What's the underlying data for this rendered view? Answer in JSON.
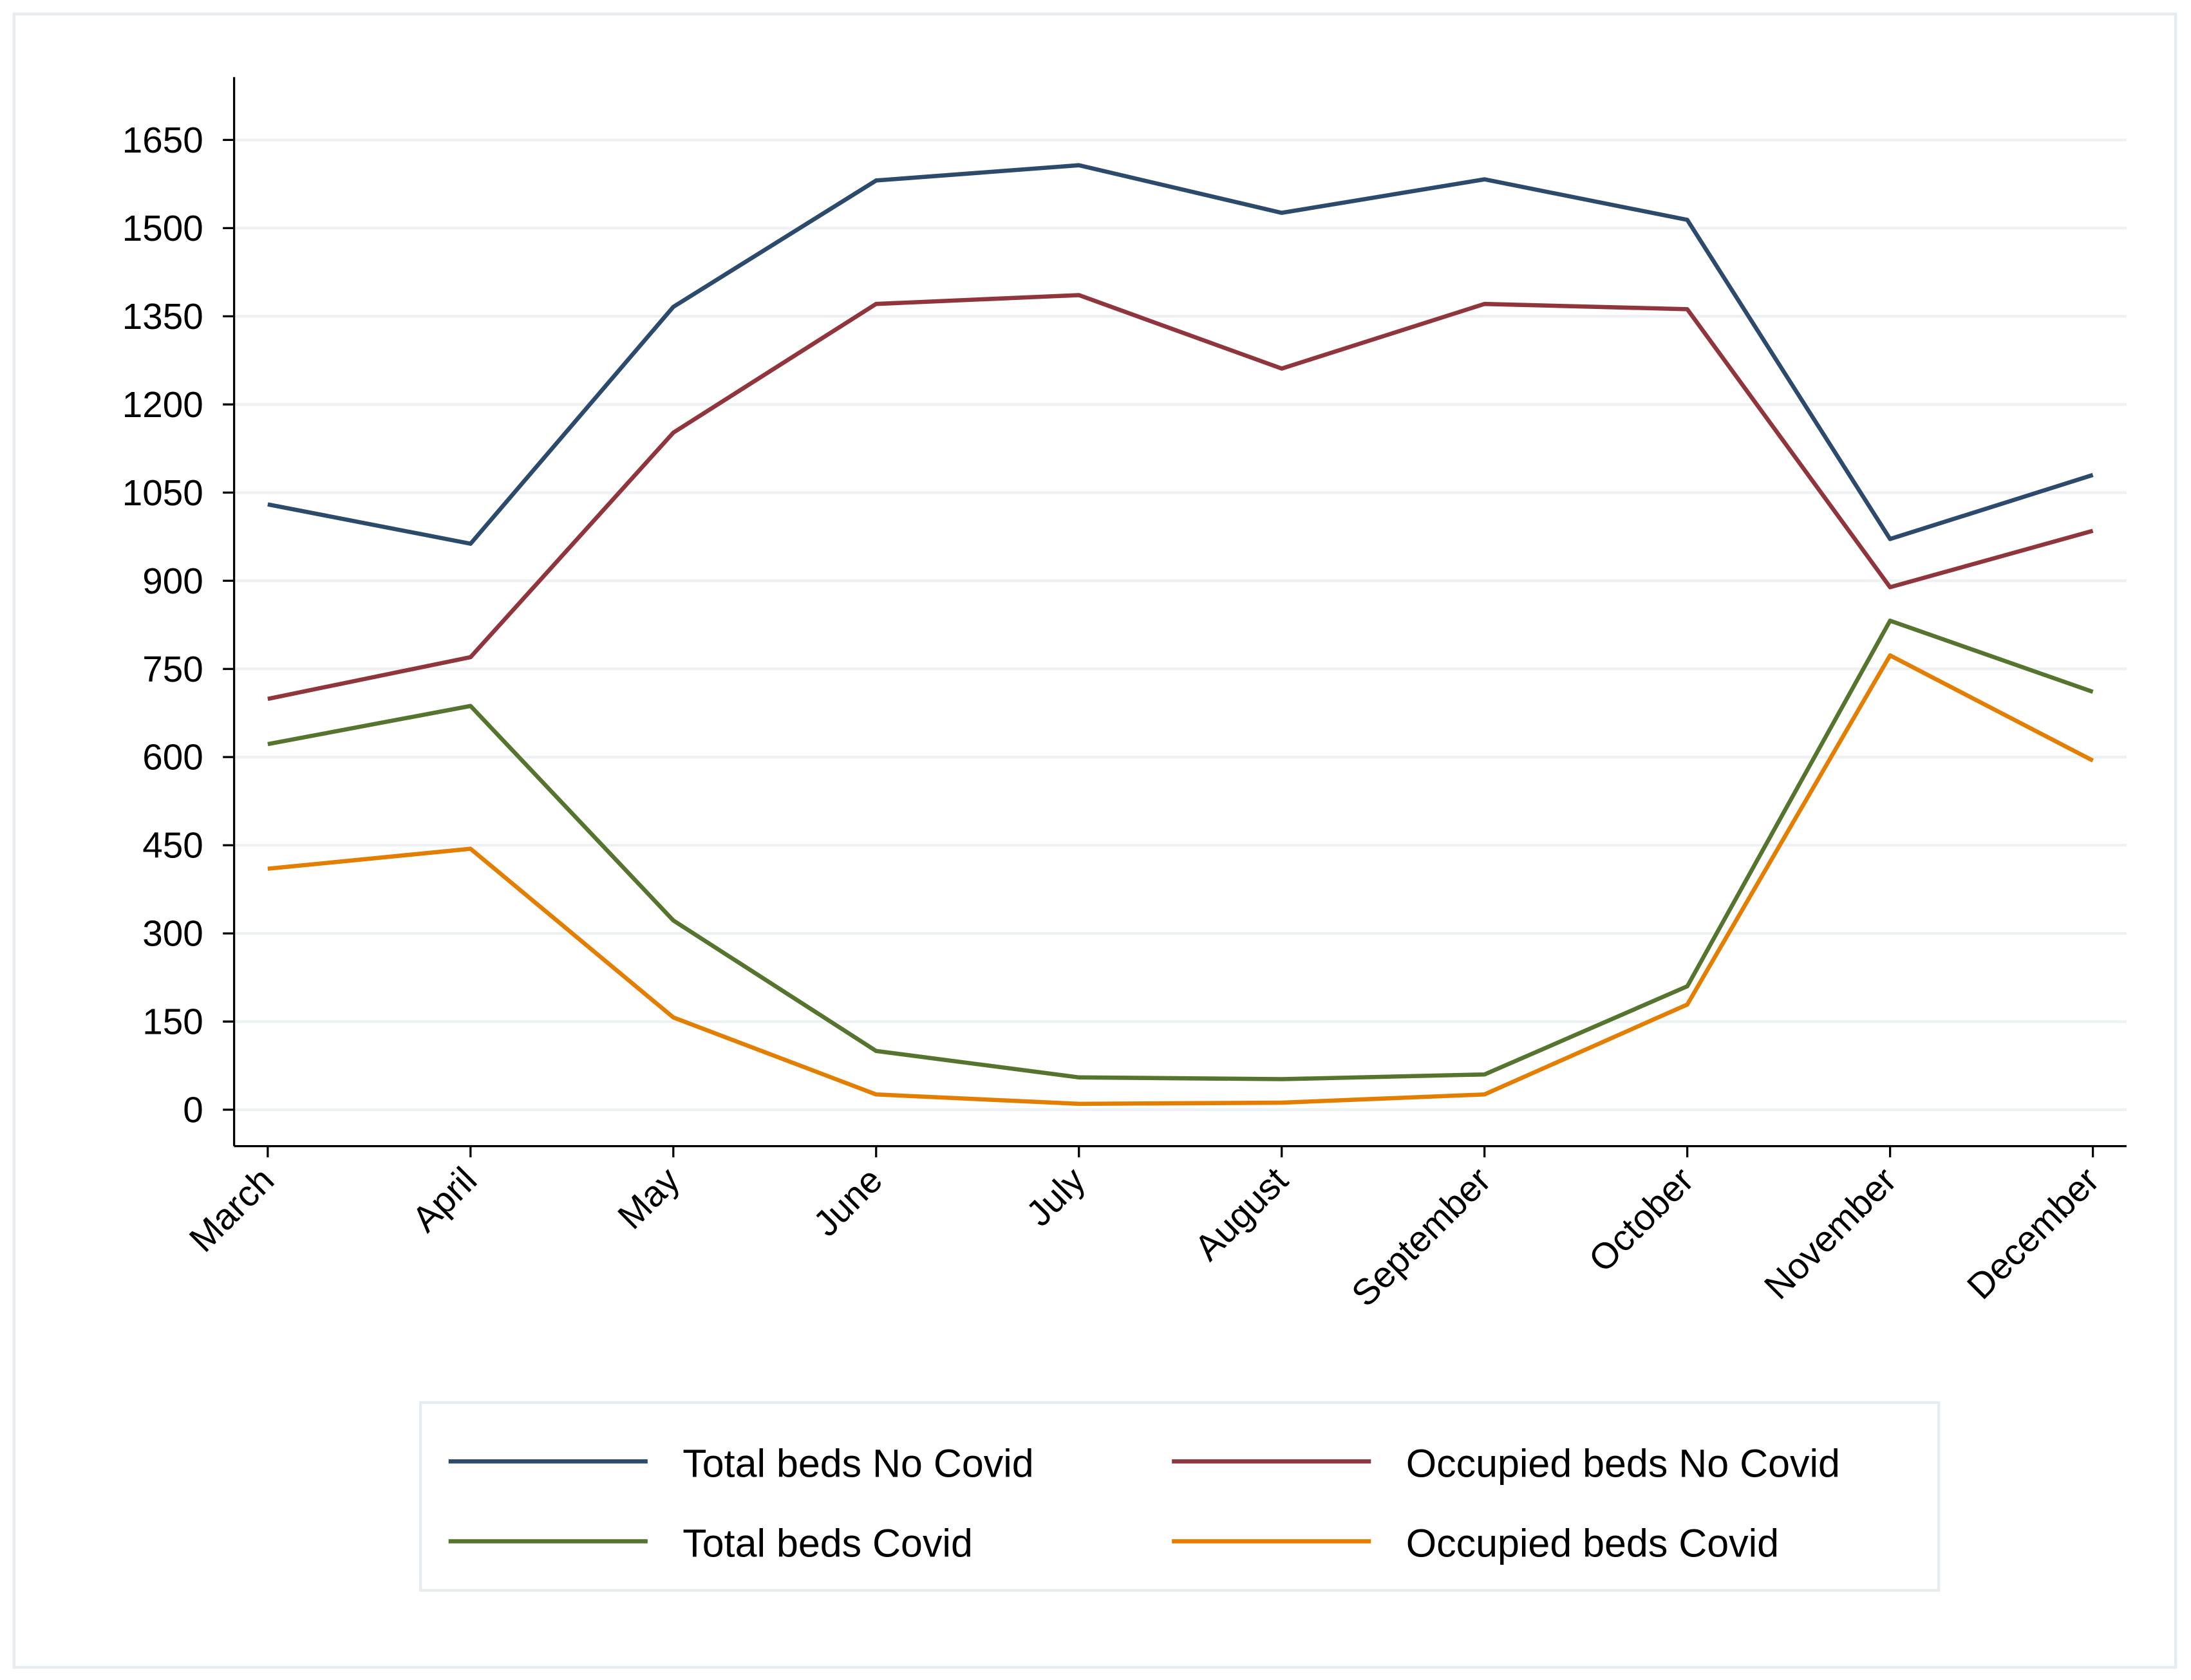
{
  "chart_data": {
    "type": "line",
    "categories": [
      "March",
      "April",
      "May",
      "June",
      "July",
      "August",
      "September",
      "October",
      "November",
      "December"
    ],
    "series": [
      {
        "name": "Total beds No Covid",
        "color": "#2c4a6b",
        "values": [
          1030,
          963,
          1366,
          1581,
          1607,
          1526,
          1583,
          1514,
          971,
          1080
        ]
      },
      {
        "name": "Occupied beds No Covid",
        "color": "#90353b",
        "values": [
          699,
          770,
          1152,
          1371,
          1386,
          1261,
          1371,
          1362,
          889,
          985
        ]
      },
      {
        "name": "Total beds Covid",
        "color": "#55752f",
        "values": [
          622,
          687,
          322,
          100,
          55,
          52,
          60,
          210,
          832,
          711
        ]
      },
      {
        "name": "Occupied beds Covid",
        "color": "#e37e00",
        "values": [
          410,
          444,
          157,
          26,
          10,
          12,
          26,
          179,
          773,
          594
        ]
      }
    ],
    "ylim": [
      -62,
      1757
    ],
    "yticks": [
      0,
      150,
      300,
      450,
      600,
      750,
      900,
      1050,
      1200,
      1350,
      1500,
      1650
    ],
    "grid": true
  }
}
